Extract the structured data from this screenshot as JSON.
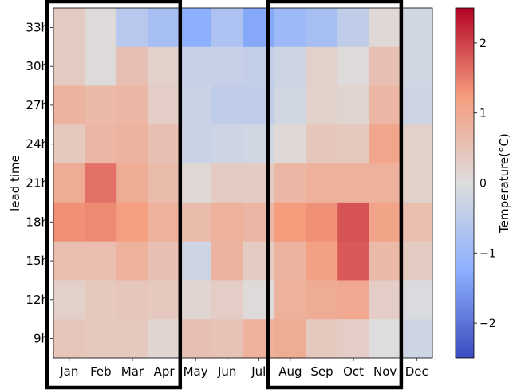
{
  "chart_data": {
    "type": "heatmap",
    "title": "",
    "xlabel": "",
    "ylabel": "lead time",
    "x_categories": [
      "Jan",
      "Feb",
      "Mar",
      "Apr",
      "May",
      "Jun",
      "Jul",
      "Aug",
      "Sep",
      "Oct",
      "Nov",
      "Dec"
    ],
    "y_categories": [
      "33h",
      "30h",
      "27h",
      "24h",
      "21h",
      "18h",
      "15h",
      "12h",
      "9h"
    ],
    "values": [
      [
        0.35,
        0.05,
        -0.6,
        -0.85,
        -1.25,
        -0.75,
        -1.35,
        -1.0,
        -0.85,
        -0.45,
        0.1,
        -0.2
      ],
      [
        0.35,
        0.05,
        0.55,
        0.25,
        -0.35,
        -0.35,
        -0.4,
        -0.25,
        0.25,
        0.05,
        0.55,
        -0.2
      ],
      [
        0.8,
        0.7,
        0.75,
        0.3,
        -0.3,
        -0.45,
        -0.45,
        -0.2,
        0.25,
        0.2,
        0.75,
        -0.25
      ],
      [
        0.4,
        0.75,
        0.8,
        0.55,
        -0.3,
        -0.25,
        -0.2,
        0.1,
        0.45,
        0.4,
        1.05,
        0.25
      ],
      [
        0.95,
        1.6,
        0.95,
        0.65,
        0.1,
        0.35,
        0.35,
        0.75,
        0.85,
        0.85,
        0.85,
        0.25
      ],
      [
        1.35,
        1.4,
        1.2,
        0.85,
        0.65,
        0.85,
        0.75,
        1.25,
        1.35,
        1.85,
        1.1,
        0.6
      ],
      [
        0.6,
        0.6,
        0.85,
        0.55,
        -0.25,
        0.8,
        0.35,
        0.8,
        1.15,
        1.8,
        0.7,
        0.35
      ],
      [
        0.25,
        0.4,
        0.45,
        0.4,
        0.15,
        0.3,
        0.05,
        0.85,
        0.95,
        1.0,
        0.3,
        -0.05
      ],
      [
        0.45,
        0.4,
        0.4,
        0.15,
        0.55,
        0.5,
        0.85,
        0.95,
        0.4,
        0.3,
        0.0,
        -0.25
      ]
    ],
    "colorbar": {
      "label": "Temperature(°C)",
      "range": [
        -2.5,
        2.5
      ],
      "ticks": [
        -2,
        -1,
        0,
        1,
        2
      ],
      "tick_labels": [
        "−2",
        "−1",
        "0",
        "1",
        "2"
      ],
      "colormap": "coolwarm"
    },
    "highlight_boxes": [
      {
        "from": "Jan",
        "to": "Apr"
      },
      {
        "from": "Aug",
        "to": "Nov"
      }
    ],
    "colors": {
      "box_stroke": "#000000"
    }
  }
}
